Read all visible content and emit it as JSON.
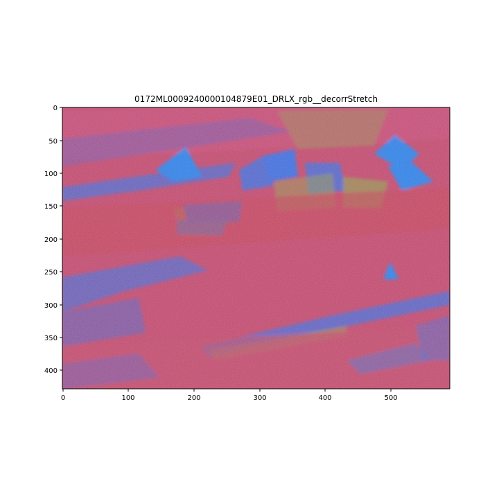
{
  "figure": {
    "title": "0172ML0009240000104879E01_DRLX_rgb__decorrStretch"
  },
  "image_axes": {
    "x_ticks": [
      "0",
      "100",
      "200",
      "300",
      "400",
      "500"
    ],
    "y_ticks": [
      "0",
      "50",
      "100",
      "150",
      "200",
      "250",
      "300",
      "350",
      "400"
    ],
    "xlim": [
      0,
      590
    ],
    "ylim_top_to_bottom": [
      0,
      430
    ]
  },
  "colors": {
    "base": "#c8466e",
    "pink": "#d2507a",
    "red": "#c83c50",
    "blue": "#3c6ee6",
    "bright_blue": "#2a82f0",
    "olive": "#9a9a50",
    "purple": "#7a5ab4"
  }
}
